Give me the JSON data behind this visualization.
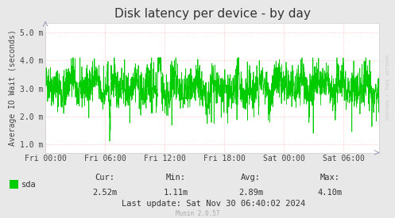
{
  "title": "Disk latency per device - by day",
  "ylabel": "Average IO Wait (seconds)",
  "bg_color": "#e8e8e8",
  "plot_bg_color": "#ffffff",
  "grid_color": "#ffaaaa",
  "line_color": "#00cc00",
  "ytick_labels": [
    "1.0 m",
    "2.0 m",
    "3.0 m",
    "4.0 m",
    "5.0 m"
  ],
  "ytick_values": [
    0.001,
    0.002,
    0.003,
    0.004,
    0.005
  ],
  "ylim": [
    0.0007,
    0.00535
  ],
  "xtick_labels": [
    "Fri 00:00",
    "Fri 06:00",
    "Fri 12:00",
    "Fri 18:00",
    "Sat 00:00",
    "Sat 06:00"
  ],
  "xtick_positions": [
    0,
    360,
    720,
    1080,
    1440,
    1800
  ],
  "total_points": 2016,
  "cur_val": "2.52m",
  "min_val": "1.11m",
  "avg_val": "2.89m",
  "max_val": "4.10m",
  "last_update": "Last update: Sat Nov 30 06:40:02 2024",
  "legend_label": "sda",
  "watermark": "RRDTOOL / TOBI OETIKER",
  "munin_version": "Munin 2.0.57",
  "title_fontsize": 11,
  "axis_fontsize": 7,
  "stats_fontsize": 7.5,
  "seed": 42
}
